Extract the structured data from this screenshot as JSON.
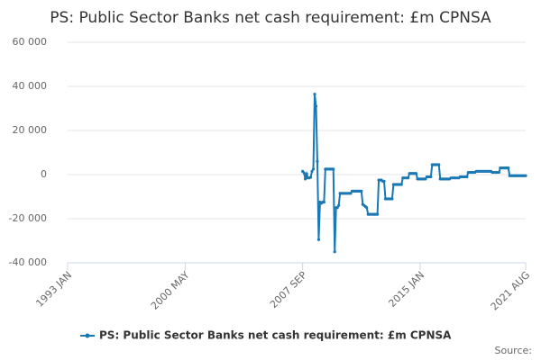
{
  "chart_data": {
    "type": "line",
    "title": "PS: Public Sector Banks net cash requirement: £m CPNSA",
    "source": "Source:",
    "categories": [
      "1993 JAN",
      null,
      null,
      null,
      null,
      null,
      null,
      null,
      null,
      null,
      null,
      null,
      null,
      null,
      null,
      null,
      null,
      null,
      null,
      null,
      null,
      null,
      null,
      null,
      null,
      null,
      null,
      null,
      null,
      null,
      null,
      null,
      null,
      null,
      null,
      null,
      null,
      null,
      null,
      null,
      null,
      null,
      null,
      null,
      null,
      null,
      null,
      null,
      null,
      null,
      null,
      null,
      null,
      null,
      null,
      null,
      null,
      null,
      null,
      null,
      null,
      null,
      null,
      null,
      null,
      null,
      null,
      null,
      null,
      null,
      null,
      null,
      null,
      null,
      null,
      null,
      null,
      null,
      null,
      null,
      null,
      null,
      null,
      null,
      null,
      null,
      null,
      null,
      "2000 MAY",
      null,
      null,
      null,
      null,
      null,
      null,
      null,
      null,
      null,
      null,
      null,
      null,
      null,
      null,
      null,
      null,
      null,
      null,
      null,
      null,
      null,
      null,
      null,
      null,
      null,
      null,
      null,
      null,
      null,
      null,
      null,
      null,
      null,
      null,
      null,
      null,
      null,
      null,
      null,
      null,
      null,
      null,
      null,
      null,
      null,
      null,
      null,
      null,
      null,
      null,
      null,
      null,
      null,
      null,
      null,
      null,
      null,
      null,
      null,
      null,
      null,
      null,
      null,
      null,
      null,
      null,
      null,
      null,
      null,
      null,
      null,
      null,
      null,
      null,
      null,
      null,
      null,
      null,
      null,
      null,
      null,
      null,
      null,
      null,
      null,
      null,
      null,
      "2007 SEP",
      null,
      null,
      null,
      null,
      null,
      null,
      null,
      null,
      null,
      null,
      null,
      null,
      null,
      null,
      null,
      null,
      null,
      null,
      null,
      null,
      null,
      null,
      null,
      null,
      null,
      null,
      null,
      null,
      null,
      null,
      null,
      null,
      null,
      null,
      null,
      null,
      null,
      null,
      null,
      null,
      null,
      null,
      null,
      null,
      null,
      null,
      null,
      null,
      null,
      null,
      null,
      null,
      null,
      null,
      null,
      null,
      null,
      null,
      null,
      null,
      null,
      null,
      null,
      null,
      null,
      null,
      null,
      null,
      null,
      null,
      null,
      null,
      null,
      null,
      null,
      null,
      null,
      null,
      null,
      null,
      null,
      null,
      null,
      null,
      null,
      null,
      null,
      "2015 JAN",
      null,
      null,
      null,
      null,
      null,
      null,
      null,
      null,
      null,
      null,
      null,
      null,
      null,
      null,
      null,
      null,
      null,
      null,
      null,
      null,
      null,
      null,
      null,
      null,
      null,
      null,
      null,
      null,
      null,
      null,
      null,
      null,
      null,
      null,
      null,
      null,
      null,
      null,
      null,
      null,
      null,
      null,
      null,
      null,
      null,
      null,
      null,
      null,
      null,
      null,
      null,
      null,
      null,
      null,
      null,
      null,
      null,
      null,
      null,
      null,
      null,
      null,
      null,
      null,
      null,
      null,
      null,
      null,
      null,
      null,
      null,
      null,
      null,
      null,
      null,
      null,
      null,
      null,
      "2021 AUG"
    ],
    "series": [
      {
        "name": "PS: Public Sector Banks net cash requirement: £m CPNSA",
        "color": "#1a78b4",
        "values": [
          null,
          null,
          null,
          null,
          null,
          null,
          null,
          null,
          null,
          null,
          null,
          null,
          null,
          null,
          null,
          null,
          null,
          null,
          null,
          null,
          null,
          null,
          null,
          null,
          null,
          null,
          null,
          null,
          null,
          null,
          null,
          null,
          null,
          null,
          null,
          null,
          null,
          null,
          null,
          null,
          null,
          null,
          null,
          null,
          null,
          null,
          null,
          null,
          null,
          null,
          null,
          null,
          null,
          null,
          null,
          null,
          null,
          null,
          null,
          null,
          null,
          null,
          null,
          null,
          null,
          null,
          null,
          null,
          null,
          null,
          null,
          null,
          null,
          null,
          null,
          null,
          null,
          null,
          null,
          null,
          null,
          null,
          null,
          null,
          null,
          null,
          null,
          null,
          null,
          null,
          null,
          null,
          null,
          null,
          null,
          null,
          null,
          null,
          null,
          null,
          null,
          null,
          null,
          null,
          null,
          null,
          null,
          null,
          null,
          null,
          null,
          null,
          null,
          null,
          null,
          null,
          null,
          null,
          null,
          null,
          null,
          null,
          null,
          null,
          null,
          null,
          null,
          null,
          null,
          null,
          null,
          null,
          null,
          null,
          null,
          null,
          null,
          null,
          null,
          null,
          null,
          null,
          null,
          null,
          null,
          null,
          null,
          null,
          null,
          null,
          null,
          null,
          null,
          null,
          null,
          null,
          null,
          null,
          null,
          null,
          null,
          null,
          null,
          null,
          null,
          null,
          null,
          null,
          null,
          null,
          null,
          null,
          null,
          null,
          null,
          null,
          1500,
          800,
          -2000,
          300,
          -1500,
          -1500,
          -1200,
          1500,
          2500,
          36500,
          31000,
          6000,
          -29500,
          -12500,
          -13000,
          -12500,
          -12500,
          2500,
          2500,
          2500,
          2500,
          2500,
          2500,
          2500,
          -35000,
          -15000,
          -15000,
          -14000,
          -8500,
          -8500,
          -8500,
          -8500,
          -8500,
          -8500,
          -8500,
          -8500,
          -8500,
          -7500,
          -7500,
          -7500,
          -7500,
          -7500,
          -7500,
          -7500,
          -7500,
          -13500,
          -14000,
          -14500,
          -15000,
          -18000,
          -18000,
          -18000,
          -18000,
          -18000,
          -18000,
          -18000,
          -18000,
          -2500,
          -2500,
          -2500,
          -3000,
          -3000,
          -11000,
          -11000,
          -11000,
          -11000,
          -11000,
          -11000,
          -4500,
          -4500,
          -4500,
          -4500,
          -4500,
          -4500,
          -4500,
          -1500,
          -1500,
          -1500,
          -1500,
          -1500,
          500,
          500,
          500,
          500,
          500,
          500,
          -2000,
          -2000,
          -2000,
          -2000,
          -2000,
          -2000,
          -2000,
          -1000,
          -1000,
          -1000,
          -1000,
          4500,
          4500,
          4500,
          4500,
          4500,
          4500,
          -2000,
          -2000,
          -2000,
          -2000,
          -2000,
          -2000,
          -2000,
          -2000,
          -1500,
          -1500,
          -1500,
          -1500,
          -1500,
          -1500,
          -1500,
          -1000,
          -1000,
          -1000,
          -1000,
          -1000,
          -1000,
          1000,
          1000,
          1000,
          1000,
          1000,
          1000,
          1500,
          1500,
          1500,
          1500,
          1500,
          1500,
          1500,
          1500,
          1500,
          1500,
          1500,
          1500,
          1000,
          1000,
          1000,
          1000,
          1000,
          1000,
          3000,
          3000,
          3000,
          3000,
          3000,
          3000,
          3000,
          -500,
          -500,
          -500,
          -500,
          -500,
          -500,
          -500,
          -500,
          -500,
          -500,
          -500,
          -500,
          -500
        ]
      }
    ],
    "ylim": [
      -40000,
      60000
    ],
    "yticks": [
      {
        "value": -40000,
        "label": "-40 000"
      },
      {
        "value": -20000,
        "label": "-20 000"
      },
      0,
      {
        "value": 20000,
        "label": "20 000"
      },
      {
        "value": 40000,
        "label": "40 000"
      },
      {
        "value": 60000,
        "label": "60 000"
      }
    ],
    "grid": true
  }
}
